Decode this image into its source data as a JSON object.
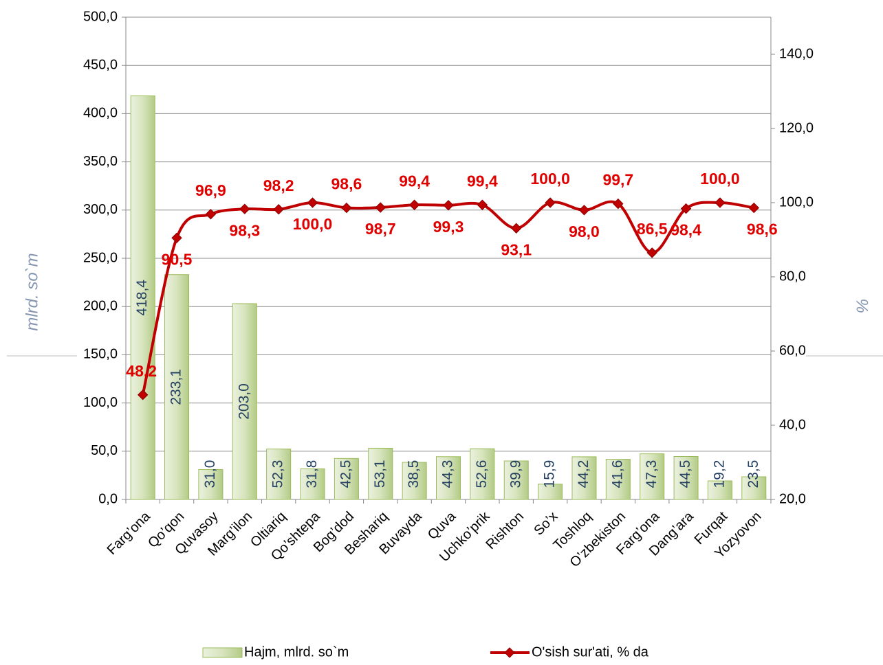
{
  "chart_data": {
    "type": "bar_line",
    "categories": [
      "Farg’ona",
      "Qo’qon",
      "Quvasoy",
      "Marg’ilon",
      "Oltiariq",
      "Qo’shtepa",
      "Bog’dod",
      "Beshariq",
      "Buvayda",
      "Quva",
      "Uchko’prik",
      "Rishton",
      "So’x",
      "Toshloq",
      "O’zbekiston",
      "Farg’ona",
      "Dang’ara",
      "Furqat",
      "Yozyovon"
    ],
    "series": [
      {
        "name": "Hajm, mlrd. so`m",
        "color": "#c3d69b",
        "type": "bar",
        "values": [
          418.4,
          233.1,
          31.0,
          203.0,
          52.3,
          31.8,
          42.5,
          53.1,
          38.5,
          44.3,
          52.6,
          39.9,
          15.9,
          44.2,
          41.6,
          47.3,
          44.5,
          19.2,
          23.5
        ],
        "value_labels": [
          "418,4",
          "233,1",
          "31,0",
          "203,0",
          "52,3",
          "31,8",
          "42,5",
          "53,1",
          "38,5",
          "44,3",
          "52,6",
          "39,9",
          "15,9",
          "44,2",
          "41,6",
          "47,3",
          "44,5",
          "19,2",
          "23,5"
        ]
      },
      {
        "name": "O'sish sur'ati, % da",
        "color": "#c00000",
        "type": "line",
        "axis": "y2",
        "values": [
          48.2,
          90.5,
          96.9,
          98.3,
          98.2,
          100.0,
          98.6,
          98.7,
          99.4,
          99.3,
          99.4,
          93.1,
          100.0,
          98.0,
          99.7,
          86.5,
          98.4,
          100.0,
          98.6
        ],
        "value_labels": [
          "48,2",
          "90,5",
          "96,9",
          "98,3",
          "98,2",
          "100,0",
          "98,6",
          "98,7",
          "99,4",
          "99,3",
          "99,4",
          "93,1",
          "100,0",
          "98,0",
          "99,7",
          "86,5",
          "98,4",
          "100,0",
          "98,6"
        ]
      }
    ],
    "ylabel": "mlrd. so`m",
    "y2label": "%",
    "ylim": [
      0,
      500
    ],
    "yticks": [
      {
        "value": 0,
        "label": "0,0"
      },
      {
        "value": 50,
        "label": "50,0"
      },
      {
        "value": 100,
        "label": "100,0"
      },
      {
        "value": 150,
        "label": "150,0"
      },
      {
        "value": 200,
        "label": "200,0"
      },
      {
        "value": 250,
        "label": "250,0"
      },
      {
        "value": 300,
        "label": "300,0"
      },
      {
        "value": 350,
        "label": "350,0"
      },
      {
        "value": 400,
        "label": "400,0"
      },
      {
        "value": 450,
        "label": "450,0"
      },
      {
        "value": 500,
        "label": "500,0"
      }
    ],
    "y2lim": [
      20,
      150
    ],
    "y2ticks": [
      {
        "value": 20,
        "label": "20,0"
      },
      {
        "value": 40,
        "label": "40,0"
      },
      {
        "value": 60,
        "label": "60,0"
      },
      {
        "value": 80,
        "label": "80,0"
      },
      {
        "value": 100,
        "label": "100,0"
      },
      {
        "value": 120,
        "label": "120,0"
      },
      {
        "value": 140,
        "label": "140,0"
      }
    ],
    "grid": true,
    "legend": "bottom"
  }
}
